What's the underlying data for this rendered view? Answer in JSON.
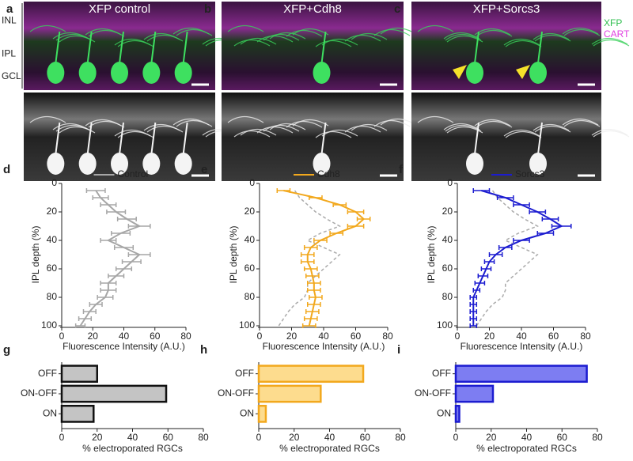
{
  "image_panels": [
    {
      "letter": "a",
      "title": "XFP control"
    },
    {
      "letter": "b",
      "title": "XFP+Cdh8"
    },
    {
      "letter": "c",
      "title": "XFP+Sorcs3"
    }
  ],
  "layers": [
    "INL",
    "IPL",
    "GCL"
  ],
  "channels": [
    {
      "name": "XFP",
      "color": "#2fbf4f"
    },
    {
      "name": "CART",
      "color": "#e040e0"
    }
  ],
  "chart_data": [
    {
      "type": "line",
      "panel": "d",
      "ylabel": "IPL depth (%)",
      "xlabel": "Fluorescence Intensity (A.U.)",
      "xlim": [
        0,
        80
      ],
      "xticks": [
        0,
        20,
        40,
        60,
        80
      ],
      "ylim": [
        0,
        100
      ],
      "yticks": [
        0,
        20,
        40,
        60,
        80,
        100
      ],
      "y_reversed": true,
      "y": [
        5,
        10,
        15,
        20,
        25,
        30,
        35,
        40,
        45,
        50,
        55,
        60,
        65,
        70,
        75,
        80,
        85,
        90,
        95,
        100
      ],
      "series": [
        {
          "name": "Control",
          "color": "#a6a6a6",
          "values": [
            22,
            25,
            30,
            35,
            42,
            50,
            38,
            30,
            40,
            50,
            45,
            40,
            35,
            30,
            30,
            28,
            22,
            18,
            15,
            12
          ],
          "errors": [
            6,
            5,
            5,
            6,
            6,
            7,
            6,
            5,
            6,
            7,
            6,
            5,
            5,
            5,
            5,
            5,
            4,
            4,
            4,
            3
          ]
        }
      ]
    },
    {
      "type": "line",
      "panel": "e",
      "ylabel": "IPL depth (%)",
      "xlabel": "Fluorescence Intensity (A.U.)",
      "xlim": [
        0,
        80
      ],
      "xticks": [
        0,
        20,
        40,
        60,
        80
      ],
      "ylim": [
        0,
        100
      ],
      "yticks": [
        0,
        20,
        40,
        60,
        80,
        100
      ],
      "y_reversed": true,
      "y": [
        5,
        10,
        15,
        20,
        25,
        30,
        35,
        40,
        45,
        50,
        55,
        60,
        65,
        70,
        75,
        80,
        85,
        90,
        95,
        100
      ],
      "series": [
        {
          "color": "#aaaaaa",
          "dashed": true,
          "values": [
            22,
            25,
            30,
            35,
            42,
            50,
            38,
            30,
            40,
            50,
            45,
            40,
            35,
            30,
            30,
            28,
            22,
            18,
            15,
            12
          ]
        },
        {
          "name": "Cdh8",
          "color": "#f2a81d",
          "values": [
            15,
            35,
            50,
            60,
            65,
            60,
            48,
            38,
            32,
            30,
            30,
            32,
            33,
            34,
            34,
            35,
            34,
            33,
            32,
            31
          ],
          "errors": [
            4,
            4,
            4,
            5,
            4,
            5,
            4,
            4,
            4,
            4,
            4,
            4,
            4,
            4,
            4,
            4,
            4,
            4,
            4,
            4
          ]
        }
      ]
    },
    {
      "type": "line",
      "panel": "f",
      "ylabel": "IPL depth (%)",
      "xlabel": "Fluorescence Intensity (A.U.)",
      "xlim": [
        0,
        80
      ],
      "xticks": [
        0,
        20,
        40,
        60,
        80
      ],
      "ylim": [
        0,
        100
      ],
      "yticks": [
        0,
        20,
        40,
        60,
        80,
        100
      ],
      "y_reversed": true,
      "y": [
        5,
        10,
        15,
        20,
        25,
        30,
        35,
        40,
        45,
        50,
        55,
        60,
        65,
        70,
        75,
        80,
        85,
        90,
        95,
        100
      ],
      "series": [
        {
          "color": "#aaaaaa",
          "dashed": true,
          "values": [
            22,
            25,
            30,
            35,
            42,
            50,
            38,
            30,
            40,
            50,
            45,
            40,
            35,
            30,
            30,
            28,
            22,
            18,
            15,
            12
          ]
        },
        {
          "name": "Sorcs3",
          "color": "#1c1cd0",
          "values": [
            15,
            30,
            40,
            50,
            58,
            65,
            55,
            40,
            30,
            24,
            20,
            18,
            16,
            14,
            12,
            10,
            10,
            10,
            10,
            10
          ],
          "errors": [
            5,
            5,
            5,
            5,
            5,
            6,
            5,
            5,
            4,
            4,
            3,
            3,
            3,
            3,
            2,
            2,
            2,
            2,
            2,
            2
          ]
        }
      ]
    },
    {
      "type": "hbar",
      "panel": "g",
      "xlabel": "% electroporated RGCs",
      "xlim": [
        0,
        80
      ],
      "xticks": [
        0,
        20,
        40,
        60,
        80
      ],
      "categories": [
        "OFF",
        "ON-OFF",
        "ON"
      ],
      "values": [
        20,
        59,
        18
      ],
      "color": "#c4c4c4",
      "edgecolor": "#111111"
    },
    {
      "type": "hbar",
      "panel": "h",
      "xlabel": "% electroporated RGCs",
      "xlim": [
        0,
        80
      ],
      "xticks": [
        0,
        20,
        40,
        60,
        80
      ],
      "categories": [
        "OFF",
        "ON-OFF",
        "ON"
      ],
      "values": [
        59,
        35,
        4
      ],
      "color": "#fddc8e",
      "edgecolor": "#f2a81d"
    },
    {
      "type": "hbar",
      "panel": "i",
      "xlabel": "% electroporated RGCs",
      "xlim": [
        0,
        80
      ],
      "xticks": [
        0,
        20,
        40,
        60,
        80
      ],
      "categories": [
        "OFF",
        "ON-OFF",
        "ON"
      ],
      "values": [
        74,
        21,
        2
      ],
      "color": "#7d7df2",
      "edgecolor": "#1c1cd0"
    }
  ]
}
